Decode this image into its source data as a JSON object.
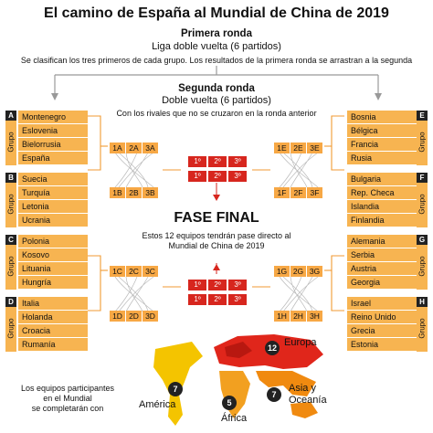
{
  "title": "El camino de España al Mundial de China de 2019",
  "first_round": {
    "heading": "Primera ronda",
    "format": "Liga doble vuelta (6 partidos)",
    "note": "Se clasifican los tres primeros de cada grupo. Los resultados de la primera ronda se arrastran a la segunda"
  },
  "second_round": {
    "heading": "Segunda ronda",
    "format": "Doble vuelta (6 partidos)",
    "note": "Con los rivales que no se cruzaron en la ronda anterior"
  },
  "group_word": "Grupo",
  "groups": [
    {
      "letter": "A",
      "teams": [
        "Montenegro",
        "Eslovenia",
        "Bielorrusia",
        "España"
      ]
    },
    {
      "letter": "B",
      "teams": [
        "Suecia",
        "Turquía",
        "Letonia",
        "Ucrania"
      ]
    },
    {
      "letter": "C",
      "teams": [
        "Polonia",
        "Kosovo",
        "Lituania",
        "Hungría"
      ]
    },
    {
      "letter": "D",
      "teams": [
        "Italia",
        "Holanda",
        "Croacia",
        "Rumanía"
      ]
    },
    {
      "letter": "E",
      "teams": [
        "Bosnia",
        "Bélgica",
        "Francia",
        "Rusia"
      ]
    },
    {
      "letter": "F",
      "teams": [
        "Bulgaria",
        "Rep. Checa",
        "Islandia",
        "Finlandia"
      ]
    },
    {
      "letter": "G",
      "teams": [
        "Alemania",
        "Serbia",
        "Austria",
        "Georgia"
      ]
    },
    {
      "letter": "H",
      "teams": [
        "Israel",
        "Reino Unido",
        "Grecia",
        "Estonia"
      ]
    }
  ],
  "positions": {
    "A": [
      "1A",
      "2A",
      "3A"
    ],
    "B": [
      "1B",
      "2B",
      "3B"
    ],
    "C": [
      "1C",
      "2C",
      "3C"
    ],
    "D": [
      "1D",
      "2D",
      "3D"
    ],
    "E": [
      "1E",
      "2E",
      "3E"
    ],
    "F": [
      "1F",
      "2F",
      "3F"
    ],
    "G": [
      "1G",
      "2G",
      "3G"
    ],
    "H": [
      "1H",
      "2H",
      "3H"
    ]
  },
  "places": [
    "1º",
    "2º",
    "3º"
  ],
  "final_phase": {
    "heading": "FASE FINAL",
    "note_line1": "Estos 12 equipos tendrán pase directo al",
    "note_line2": "Mundial de China de 2019"
  },
  "map": {
    "intro_lines": [
      "Los equipos participantes",
      "en el Mundial",
      "se completarán con"
    ],
    "regions": [
      {
        "name": "Europa",
        "count": "12"
      },
      {
        "name": "América",
        "count": "7"
      },
      {
        "name": "África",
        "count": "5"
      },
      {
        "name": "Asia y Oceanía",
        "count": "7"
      }
    ],
    "colors": {
      "europa": "#e0261b",
      "america": "#f4c400",
      "africa": "#f2a020",
      "asia": "#f08a10"
    }
  },
  "colors": {
    "team_fill": "#f7b451",
    "place_fill": "#d7261e",
    "accent": "#f09a33"
  }
}
